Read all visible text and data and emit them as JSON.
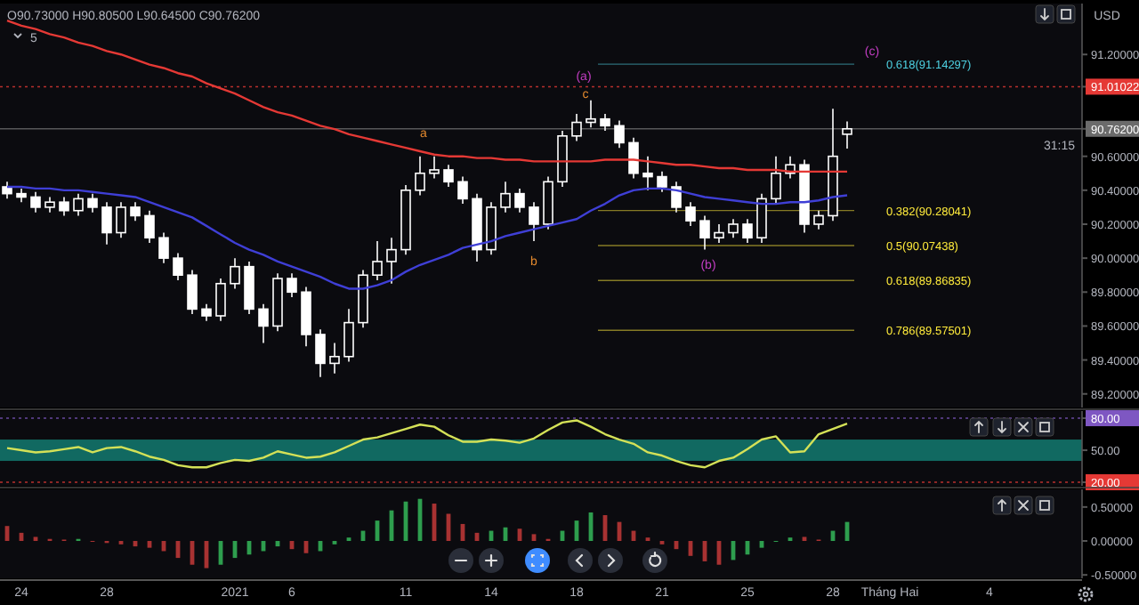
{
  "chart_data": [
    {
      "type": "candlestick",
      "color": "#ffffff",
      "tick_labels": "y",
      "ylim": [
        89.12,
        91.5
      ],
      "categories": [
        null,
        null,
        null,
        null,
        null,
        null,
        null,
        null,
        null,
        null,
        null,
        null,
        null,
        null,
        null,
        null,
        null,
        null,
        null,
        null,
        null,
        null,
        null,
        null,
        null,
        null,
        null,
        null,
        null,
        null,
        null,
        null,
        null,
        null,
        null,
        null,
        null,
        null,
        null,
        null,
        null,
        null,
        null,
        null,
        null,
        null,
        null,
        null,
        null,
        null,
        null,
        null,
        null,
        null,
        null,
        null,
        null,
        null,
        null,
        null,
        null,
        null,
        null,
        null,
        null,
        null,
        null,
        null,
        null,
        null,
        null,
        null,
        null,
        null,
        null,
        null
      ],
      "ohlc": [
        [
          90.42,
          90.45,
          90.35,
          90.38
        ],
        [
          90.38,
          90.41,
          90.33,
          90.36
        ],
        [
          90.36,
          90.39,
          90.27,
          90.3
        ],
        [
          90.3,
          90.36,
          90.27,
          90.33
        ],
        [
          90.33,
          90.36,
          90.25,
          90.28
        ],
        [
          90.28,
          90.38,
          90.25,
          90.35
        ],
        [
          90.35,
          90.38,
          90.27,
          90.3
        ],
        [
          90.3,
          90.33,
          90.08,
          90.15
        ],
        [
          90.15,
          90.33,
          90.12,
          90.3
        ],
        [
          90.3,
          90.33,
          90.22,
          90.25
        ],
        [
          90.25,
          90.28,
          90.09,
          90.12
        ],
        [
          90.12,
          90.15,
          89.97,
          90.0
        ],
        [
          90.0,
          90.03,
          89.87,
          89.9
        ],
        [
          89.9,
          89.93,
          89.67,
          89.7
        ],
        [
          89.7,
          89.73,
          89.63,
          89.66
        ],
        [
          89.66,
          89.88,
          89.63,
          89.85
        ],
        [
          89.85,
          90.0,
          89.82,
          89.95
        ],
        [
          89.95,
          89.98,
          89.67,
          89.7
        ],
        [
          89.7,
          89.73,
          89.5,
          89.6
        ],
        [
          89.6,
          89.91,
          89.57,
          89.88
        ],
        [
          89.88,
          89.91,
          89.77,
          89.8
        ],
        [
          89.8,
          89.83,
          89.48,
          89.55
        ],
        [
          89.55,
          89.58,
          89.3,
          89.38
        ],
        [
          89.38,
          89.5,
          89.32,
          89.42
        ],
        [
          89.42,
          89.7,
          89.39,
          89.62
        ],
        [
          89.62,
          89.93,
          89.59,
          89.9
        ],
        [
          89.9,
          90.1,
          89.87,
          89.98
        ],
        [
          89.98,
          90.12,
          89.85,
          90.05
        ],
        [
          90.05,
          90.43,
          90.02,
          90.4
        ],
        [
          90.4,
          90.6,
          90.37,
          90.5
        ],
        [
          90.5,
          90.6,
          90.47,
          90.52
        ],
        [
          90.52,
          90.55,
          90.42,
          90.45
        ],
        [
          90.45,
          90.48,
          90.32,
          90.35
        ],
        [
          90.35,
          90.38,
          89.98,
          90.05
        ],
        [
          90.05,
          90.33,
          90.02,
          90.3
        ],
        [
          90.3,
          90.45,
          90.27,
          90.38
        ],
        [
          90.38,
          90.41,
          90.27,
          90.3
        ],
        [
          90.3,
          90.33,
          90.1,
          90.2
        ],
        [
          90.2,
          90.48,
          90.17,
          90.45
        ],
        [
          90.45,
          90.75,
          90.42,
          90.72
        ],
        [
          90.72,
          90.85,
          90.69,
          90.8
        ],
        [
          90.8,
          90.93,
          90.77,
          90.82
        ],
        [
          90.82,
          90.85,
          90.75,
          90.78
        ],
        [
          90.78,
          90.81,
          90.65,
          90.68
        ],
        [
          90.68,
          90.71,
          90.47,
          90.5
        ],
        [
          90.5,
          90.6,
          90.4,
          90.48
        ],
        [
          90.48,
          90.51,
          90.39,
          90.42
        ],
        [
          90.42,
          90.45,
          90.27,
          90.3
        ],
        [
          90.3,
          90.33,
          90.19,
          90.22
        ],
        [
          90.22,
          90.25,
          90.05,
          90.12
        ],
        [
          90.12,
          90.2,
          90.09,
          90.15
        ],
        [
          90.15,
          90.23,
          90.12,
          90.2
        ],
        [
          90.2,
          90.23,
          90.09,
          90.12
        ],
        [
          90.12,
          90.38,
          90.09,
          90.35
        ],
        [
          90.35,
          90.6,
          90.32,
          90.5
        ],
        [
          90.5,
          90.6,
          90.47,
          90.55
        ],
        [
          90.55,
          90.58,
          90.15,
          90.2
        ],
        [
          90.2,
          90.28,
          90.17,
          90.25
        ],
        [
          90.25,
          90.88,
          90.22,
          90.6
        ],
        [
          90.73,
          90.805,
          90.645,
          90.762
        ],
        null,
        null,
        null,
        null,
        null,
        null,
        null,
        null,
        null,
        null,
        null,
        null,
        null,
        null,
        null,
        null
      ],
      "series": [
        {
          "type": "line",
          "color": "#e53935",
          "values": [
            91.4,
            91.37,
            91.35,
            91.32,
            91.3,
            91.27,
            91.25,
            91.22,
            91.2,
            91.17,
            91.14,
            91.12,
            91.09,
            91.07,
            91.03,
            91.0,
            90.97,
            90.93,
            90.89,
            90.86,
            90.84,
            90.81,
            90.78,
            90.76,
            90.73,
            90.71,
            90.69,
            90.67,
            90.65,
            90.63,
            90.61,
            90.6,
            90.6,
            90.59,
            90.59,
            90.58,
            90.58,
            90.57,
            90.57,
            90.57,
            90.57,
            90.57,
            90.58,
            90.58,
            90.58,
            90.57,
            90.56,
            90.55,
            90.55,
            90.54,
            90.53,
            90.53,
            90.52,
            90.52,
            90.52,
            90.51,
            90.51,
            90.51,
            90.51,
            90.51,
            null,
            null,
            null,
            null,
            null,
            null,
            null,
            null,
            null,
            null,
            null,
            null,
            null,
            null,
            null,
            null
          ]
        },
        {
          "type": "line",
          "color": "#3f3fd6",
          "values": [
            90.42,
            90.42,
            90.41,
            90.41,
            90.4,
            90.4,
            90.39,
            90.38,
            90.37,
            90.36,
            90.33,
            90.3,
            90.27,
            90.24,
            90.19,
            90.14,
            90.09,
            90.05,
            90.02,
            89.98,
            89.95,
            89.92,
            89.89,
            89.85,
            89.82,
            89.82,
            89.84,
            89.87,
            89.92,
            89.96,
            89.99,
            90.02,
            90.06,
            90.08,
            90.1,
            90.13,
            90.15,
            90.17,
            90.19,
            90.21,
            90.23,
            90.28,
            90.32,
            90.37,
            90.4,
            90.41,
            90.41,
            90.4,
            90.38,
            90.36,
            90.35,
            90.34,
            90.33,
            90.32,
            90.32,
            90.33,
            90.33,
            90.34,
            90.36,
            90.37,
            null,
            null,
            null,
            null,
            null,
            null,
            null,
            null,
            null,
            null,
            null,
            null,
            null,
            null,
            null,
            null
          ]
        }
      ],
      "yticks": [
        {
          "value": 91.2,
          "label": "91.20000"
        },
        {
          "value": 91.01022,
          "label": "91.01022"
        },
        {
          "value": 90.762,
          "label": "90.76200"
        },
        {
          "value": 90.6,
          "label": "90.60000"
        },
        {
          "value": 90.4,
          "label": "90.40000"
        },
        {
          "value": 90.2,
          "label": "90.20000"
        },
        {
          "value": 90.0,
          "label": "90.00000"
        },
        {
          "value": 89.8,
          "label": "89.80000"
        },
        {
          "value": 89.6,
          "label": "89.60000"
        },
        {
          "value": 89.4,
          "label": "89.40000"
        },
        {
          "value": 89.2,
          "label": "89.20000"
        }
      ],
      "ref_lines": [
        {
          "axis": "y",
          "value": 91.01022,
          "color": "#e53935",
          "line_style": "dotted"
        },
        {
          "axis": "y",
          "value": 90.762,
          "color": "#6b6b6b",
          "line_style": "solid"
        },
        {
          "axis": "y",
          "value": 91.14297,
          "label": "0.618(91.14297)",
          "color": "#4dd0e1",
          "line_style": "solid"
        },
        {
          "axis": "y",
          "value": 90.28041,
          "label": "0.382(90.28041)",
          "color": "#ffeb3b",
          "line_style": "solid"
        },
        {
          "axis": "y",
          "value": 90.07438,
          "label": "0.5(90.07438)",
          "color": "#ffeb3b",
          "line_style": "solid"
        },
        {
          "axis": "y",
          "value": 89.86835,
          "label": "0.618(89.86835)",
          "color": "#ffeb3b",
          "line_style": "solid"
        },
        {
          "axis": "y",
          "value": 89.57501,
          "label": "0.786(89.57501)",
          "color": "#ffeb3b",
          "line_style": "solid"
        }
      ],
      "annotations": [
        "O90.73000 H90.80500 L90.64500 C90.76200",
        "5",
        "USD",
        "a",
        "b",
        "c",
        "(a)",
        "(b)",
        "(c)",
        "31:15"
      ]
    },
    {
      "type": "line",
      "color": "#d4e157",
      "tick_labels": "y",
      "ylim": [
        16.7,
        86.7
      ],
      "categories": [
        null,
        null,
        null,
        null,
        null,
        null,
        null,
        null,
        null,
        null,
        null,
        null,
        null,
        null,
        null,
        null,
        null,
        null,
        null,
        null,
        null,
        null,
        null,
        null,
        null,
        null,
        null,
        null,
        null,
        null,
        null,
        null,
        null,
        null,
        null,
        null,
        null,
        null,
        null,
        null,
        null,
        null,
        null,
        null,
        null,
        null,
        null,
        null,
        null,
        null,
        null,
        null,
        null,
        null,
        null,
        null,
        null,
        null,
        null,
        null,
        null,
        null,
        null,
        null,
        null,
        null,
        null,
        null,
        null,
        null,
        null,
        null,
        null,
        null,
        null,
        null
      ],
      "values": [
        52,
        50,
        48,
        49,
        51,
        53,
        48,
        52,
        53,
        49,
        44,
        41,
        36,
        34,
        34,
        38,
        41,
        40,
        43,
        49,
        46,
        43,
        44,
        48,
        54,
        60,
        62,
        66,
        70,
        74,
        72,
        64,
        58,
        58,
        60,
        59,
        57,
        61,
        69,
        76,
        78,
        72,
        65,
        60,
        56,
        48,
        45,
        40,
        36,
        34,
        40,
        43,
        51,
        60,
        63,
        48,
        49,
        65,
        70,
        75,
        null,
        null,
        null,
        null,
        null,
        null,
        null,
        null,
        null,
        null,
        null,
        null,
        null,
        null,
        null,
        null
      ],
      "yticks": [
        {
          "value": 80,
          "label": "80.00"
        },
        {
          "value": 50,
          "label": "50.00"
        },
        {
          "value": 20,
          "label": "20.00"
        }
      ],
      "ref_lines": [
        {
          "axis": "y",
          "value": 80,
          "color": "#7e57c2",
          "line_style": "dotted"
        },
        {
          "axis": "y",
          "value": 20,
          "color": "#e53935",
          "line_style": "dotted"
        }
      ],
      "bands": [
        {
          "axis": "y",
          "from": 40,
          "to": 60,
          "color": "#137a70"
        }
      ]
    },
    {
      "type": "bar",
      "ylim": [
        -0.55,
        0.76
      ],
      "categories": [
        null,
        "24",
        null,
        null,
        null,
        null,
        null,
        "28",
        null,
        null,
        null,
        null,
        null,
        null,
        null,
        null,
        "2021",
        null,
        null,
        null,
        "6",
        null,
        null,
        null,
        null,
        null,
        null,
        null,
        "11",
        null,
        null,
        null,
        null,
        null,
        "14",
        null,
        null,
        null,
        null,
        null,
        "18",
        null,
        null,
        null,
        null,
        null,
        "21",
        null,
        null,
        null,
        null,
        null,
        "25",
        null,
        null,
        null,
        null,
        null,
        "28",
        null,
        null,
        null,
        "Tháng Hai",
        null,
        null,
        null,
        null,
        null,
        null,
        "4",
        null,
        null,
        null,
        null,
        null,
        null
      ],
      "values": [
        0.22,
        0.12,
        0.06,
        0.03,
        0.02,
        0.03,
        0.0,
        -0.03,
        -0.05,
        -0.08,
        -0.1,
        -0.15,
        -0.25,
        -0.35,
        -0.4,
        -0.35,
        -0.25,
        -0.2,
        -0.15,
        -0.08,
        -0.12,
        -0.18,
        -0.15,
        -0.05,
        0.05,
        0.15,
        0.3,
        0.45,
        0.58,
        0.62,
        0.55,
        0.4,
        0.25,
        0.12,
        0.15,
        0.2,
        0.18,
        0.1,
        0.03,
        0.15,
        0.3,
        0.42,
        0.38,
        0.28,
        0.15,
        0.05,
        -0.05,
        -0.12,
        -0.22,
        -0.3,
        -0.35,
        -0.28,
        -0.2,
        -0.1,
        0.0,
        0.05,
        0.06,
        0.02,
        0.15,
        0.28,
        null,
        null,
        null,
        null,
        null,
        null,
        null,
        null,
        null,
        null,
        null,
        null,
        null,
        null,
        null,
        null
      ],
      "colors": [
        "#a83232",
        "#a83232",
        "#a83232",
        "#a83232",
        "#a83232",
        "#2e9e4e",
        "#a83232",
        "#a83232",
        "#a83232",
        "#a83232",
        "#a83232",
        "#a83232",
        "#a83232",
        "#a83232",
        "#a83232",
        "#2e9e4e",
        "#2e9e4e",
        "#2e9e4e",
        "#2e9e4e",
        "#2e9e4e",
        "#a83232",
        "#a83232",
        "#2e9e4e",
        "#2e9e4e",
        "#2e9e4e",
        "#2e9e4e",
        "#2e9e4e",
        "#2e9e4e",
        "#2e9e4e",
        "#2e9e4e",
        "#a83232",
        "#a83232",
        "#a83232",
        "#a83232",
        "#2e9e4e",
        "#2e9e4e",
        "#a83232",
        "#a83232",
        "#a83232",
        "#2e9e4e",
        "#2e9e4e",
        "#2e9e4e",
        "#a83232",
        "#a83232",
        "#a83232",
        "#a83232",
        "#a83232",
        "#a83232",
        "#a83232",
        "#a83232",
        "#a83232",
        "#2e9e4e",
        "#2e9e4e",
        "#2e9e4e",
        "#2e9e4e",
        "#2e9e4e",
        "#a83232",
        "#a83232",
        "#2e9e4e",
        "#2e9e4e",
        null,
        null,
        null,
        null,
        null,
        null,
        null,
        null,
        null,
        null,
        null,
        null,
        null,
        null,
        null,
        null
      ],
      "yticks": [
        {
          "value": 0.5,
          "label": "0.50000"
        },
        {
          "value": 0,
          "label": "0.00000"
        },
        {
          "value": -0.5,
          "label": "-0.50000"
        }
      ]
    }
  ]
}
